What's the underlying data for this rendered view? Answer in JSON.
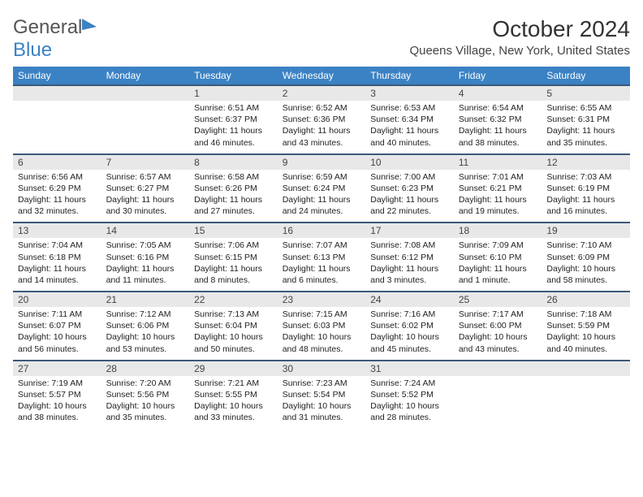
{
  "logo_text_1": "General",
  "logo_text_2": "Blue",
  "title": "October 2024",
  "location": "Queens Village, New York, United States",
  "day_names": [
    "Sunday",
    "Monday",
    "Tuesday",
    "Wednesday",
    "Thursday",
    "Friday",
    "Saturday"
  ],
  "colors": {
    "header_bg": "#3b82c4",
    "header_text": "#ffffff",
    "daynum_bg": "#e8e8e8",
    "row_border": "#3b5a7a",
    "text": "#222222"
  },
  "weeks": [
    [
      {
        "num": "",
        "sunrise": "",
        "sunset": "",
        "daylight": ""
      },
      {
        "num": "",
        "sunrise": "",
        "sunset": "",
        "daylight": ""
      },
      {
        "num": "1",
        "sunrise": "Sunrise: 6:51 AM",
        "sunset": "Sunset: 6:37 PM",
        "daylight": "Daylight: 11 hours and 46 minutes."
      },
      {
        "num": "2",
        "sunrise": "Sunrise: 6:52 AM",
        "sunset": "Sunset: 6:36 PM",
        "daylight": "Daylight: 11 hours and 43 minutes."
      },
      {
        "num": "3",
        "sunrise": "Sunrise: 6:53 AM",
        "sunset": "Sunset: 6:34 PM",
        "daylight": "Daylight: 11 hours and 40 minutes."
      },
      {
        "num": "4",
        "sunrise": "Sunrise: 6:54 AM",
        "sunset": "Sunset: 6:32 PM",
        "daylight": "Daylight: 11 hours and 38 minutes."
      },
      {
        "num": "5",
        "sunrise": "Sunrise: 6:55 AM",
        "sunset": "Sunset: 6:31 PM",
        "daylight": "Daylight: 11 hours and 35 minutes."
      }
    ],
    [
      {
        "num": "6",
        "sunrise": "Sunrise: 6:56 AM",
        "sunset": "Sunset: 6:29 PM",
        "daylight": "Daylight: 11 hours and 32 minutes."
      },
      {
        "num": "7",
        "sunrise": "Sunrise: 6:57 AM",
        "sunset": "Sunset: 6:27 PM",
        "daylight": "Daylight: 11 hours and 30 minutes."
      },
      {
        "num": "8",
        "sunrise": "Sunrise: 6:58 AM",
        "sunset": "Sunset: 6:26 PM",
        "daylight": "Daylight: 11 hours and 27 minutes."
      },
      {
        "num": "9",
        "sunrise": "Sunrise: 6:59 AM",
        "sunset": "Sunset: 6:24 PM",
        "daylight": "Daylight: 11 hours and 24 minutes."
      },
      {
        "num": "10",
        "sunrise": "Sunrise: 7:00 AM",
        "sunset": "Sunset: 6:23 PM",
        "daylight": "Daylight: 11 hours and 22 minutes."
      },
      {
        "num": "11",
        "sunrise": "Sunrise: 7:01 AM",
        "sunset": "Sunset: 6:21 PM",
        "daylight": "Daylight: 11 hours and 19 minutes."
      },
      {
        "num": "12",
        "sunrise": "Sunrise: 7:03 AM",
        "sunset": "Sunset: 6:19 PM",
        "daylight": "Daylight: 11 hours and 16 minutes."
      }
    ],
    [
      {
        "num": "13",
        "sunrise": "Sunrise: 7:04 AM",
        "sunset": "Sunset: 6:18 PM",
        "daylight": "Daylight: 11 hours and 14 minutes."
      },
      {
        "num": "14",
        "sunrise": "Sunrise: 7:05 AM",
        "sunset": "Sunset: 6:16 PM",
        "daylight": "Daylight: 11 hours and 11 minutes."
      },
      {
        "num": "15",
        "sunrise": "Sunrise: 7:06 AM",
        "sunset": "Sunset: 6:15 PM",
        "daylight": "Daylight: 11 hours and 8 minutes."
      },
      {
        "num": "16",
        "sunrise": "Sunrise: 7:07 AM",
        "sunset": "Sunset: 6:13 PM",
        "daylight": "Daylight: 11 hours and 6 minutes."
      },
      {
        "num": "17",
        "sunrise": "Sunrise: 7:08 AM",
        "sunset": "Sunset: 6:12 PM",
        "daylight": "Daylight: 11 hours and 3 minutes."
      },
      {
        "num": "18",
        "sunrise": "Sunrise: 7:09 AM",
        "sunset": "Sunset: 6:10 PM",
        "daylight": "Daylight: 11 hours and 1 minute."
      },
      {
        "num": "19",
        "sunrise": "Sunrise: 7:10 AM",
        "sunset": "Sunset: 6:09 PM",
        "daylight": "Daylight: 10 hours and 58 minutes."
      }
    ],
    [
      {
        "num": "20",
        "sunrise": "Sunrise: 7:11 AM",
        "sunset": "Sunset: 6:07 PM",
        "daylight": "Daylight: 10 hours and 56 minutes."
      },
      {
        "num": "21",
        "sunrise": "Sunrise: 7:12 AM",
        "sunset": "Sunset: 6:06 PM",
        "daylight": "Daylight: 10 hours and 53 minutes."
      },
      {
        "num": "22",
        "sunrise": "Sunrise: 7:13 AM",
        "sunset": "Sunset: 6:04 PM",
        "daylight": "Daylight: 10 hours and 50 minutes."
      },
      {
        "num": "23",
        "sunrise": "Sunrise: 7:15 AM",
        "sunset": "Sunset: 6:03 PM",
        "daylight": "Daylight: 10 hours and 48 minutes."
      },
      {
        "num": "24",
        "sunrise": "Sunrise: 7:16 AM",
        "sunset": "Sunset: 6:02 PM",
        "daylight": "Daylight: 10 hours and 45 minutes."
      },
      {
        "num": "25",
        "sunrise": "Sunrise: 7:17 AM",
        "sunset": "Sunset: 6:00 PM",
        "daylight": "Daylight: 10 hours and 43 minutes."
      },
      {
        "num": "26",
        "sunrise": "Sunrise: 7:18 AM",
        "sunset": "Sunset: 5:59 PM",
        "daylight": "Daylight: 10 hours and 40 minutes."
      }
    ],
    [
      {
        "num": "27",
        "sunrise": "Sunrise: 7:19 AM",
        "sunset": "Sunset: 5:57 PM",
        "daylight": "Daylight: 10 hours and 38 minutes."
      },
      {
        "num": "28",
        "sunrise": "Sunrise: 7:20 AM",
        "sunset": "Sunset: 5:56 PM",
        "daylight": "Daylight: 10 hours and 35 minutes."
      },
      {
        "num": "29",
        "sunrise": "Sunrise: 7:21 AM",
        "sunset": "Sunset: 5:55 PM",
        "daylight": "Daylight: 10 hours and 33 minutes."
      },
      {
        "num": "30",
        "sunrise": "Sunrise: 7:23 AM",
        "sunset": "Sunset: 5:54 PM",
        "daylight": "Daylight: 10 hours and 31 minutes."
      },
      {
        "num": "31",
        "sunrise": "Sunrise: 7:24 AM",
        "sunset": "Sunset: 5:52 PM",
        "daylight": "Daylight: 10 hours and 28 minutes."
      },
      {
        "num": "",
        "sunrise": "",
        "sunset": "",
        "daylight": ""
      },
      {
        "num": "",
        "sunrise": "",
        "sunset": "",
        "daylight": ""
      }
    ]
  ]
}
